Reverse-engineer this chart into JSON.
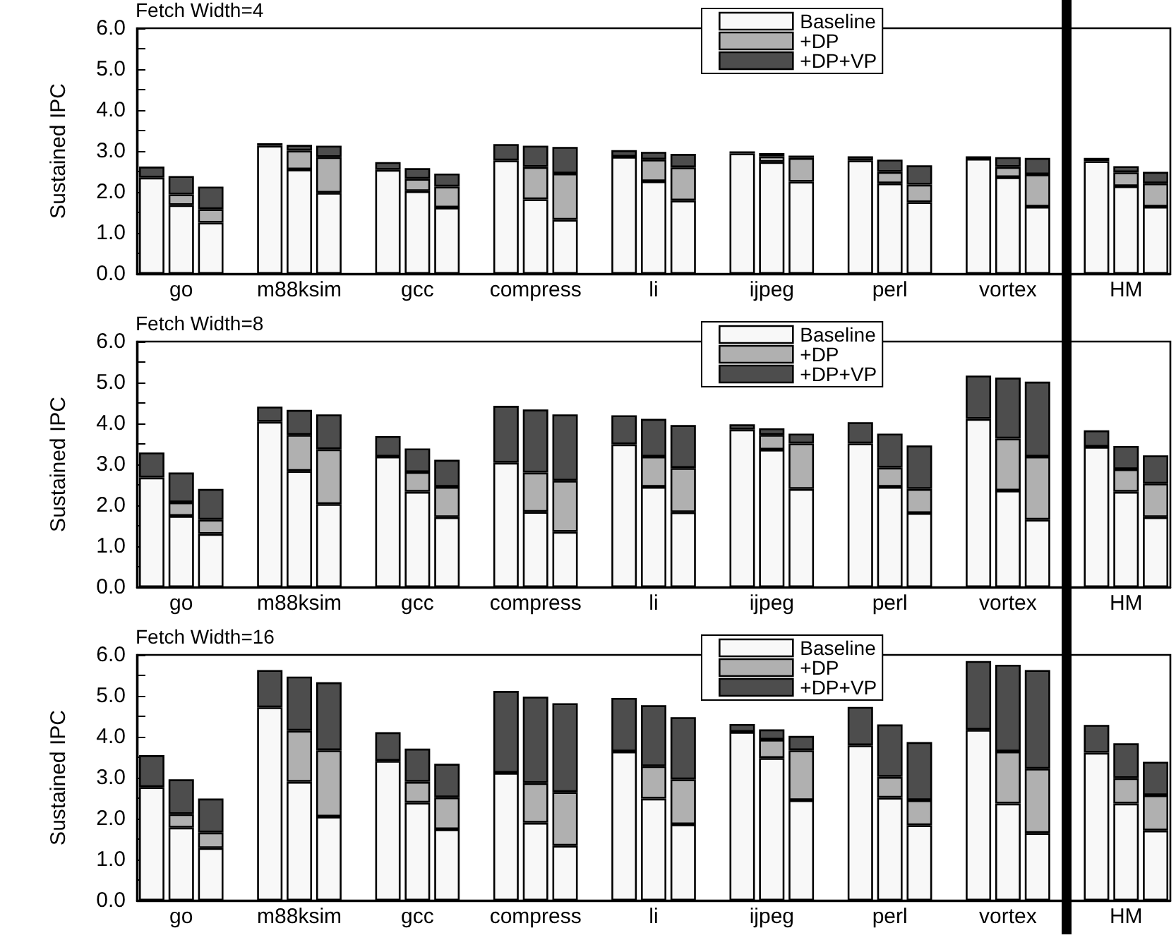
{
  "chart_data": [
    {
      "type": "bar",
      "stacked": true,
      "title": "Fetch Width=4",
      "ylabel": "Sustained IPC",
      "legend": "top",
      "categories": [
        null,
        "go",
        null,
        null,
        null,
        "m88ksim",
        null,
        null,
        null,
        "gcc",
        null,
        null,
        null,
        "compress",
        null,
        null,
        null,
        "li",
        null,
        null,
        null,
        "ijpeg",
        null,
        null,
        null,
        "perl",
        null,
        null,
        null,
        "vortex",
        null,
        null,
        null,
        "HM",
        null
      ],
      "ylim": [
        0,
        6
      ],
      "yticks": [
        {
          "value": 0,
          "label": "0.0"
        },
        {
          "value": 0.5,
          "label": null
        },
        {
          "value": 1,
          "label": "1.0"
        },
        {
          "value": 1.5,
          "label": null
        },
        {
          "value": 2,
          "label": "2.0"
        },
        {
          "value": 2.5,
          "label": null
        },
        {
          "value": 3,
          "label": "3.0"
        },
        {
          "value": 3.5,
          "label": null
        },
        {
          "value": 4,
          "label": "4.0"
        },
        {
          "value": 4.5,
          "label": null
        },
        {
          "value": 5,
          "label": "5.0"
        },
        {
          "value": 5.5,
          "label": null
        },
        {
          "value": 6,
          "label": "6.0"
        }
      ],
      "series": [
        {
          "name": "Baseline",
          "color": "#f8f8f8",
          "values": [
            2.35,
            1.68,
            1.25,
            null,
            3.13,
            2.55,
            1.98,
            null,
            2.54,
            2.02,
            1.62,
            null,
            2.77,
            1.82,
            1.32,
            null,
            2.86,
            2.26,
            1.79,
            null,
            2.94,
            2.73,
            2.25,
            null,
            2.77,
            2.21,
            1.75,
            null,
            2.81,
            2.36,
            1.64,
            null,
            2.75,
            2.14,
            1.64
          ]
        },
        {
          "name": "+DP",
          "color": "#b0b0b0",
          "values": [
            0,
            0.26,
            0.33,
            null,
            0,
            0.46,
            0.87,
            null,
            0,
            0.3,
            0.51,
            null,
            0,
            0.79,
            1.13,
            null,
            0,
            0.53,
            0.81,
            null,
            0,
            0.14,
            0.58,
            null,
            0,
            0.28,
            0.43,
            null,
            0,
            0.25,
            0.79,
            null,
            0,
            0.34,
            0.57
          ]
        },
        {
          "name": "+DP+VP",
          "color": "#4d4d4d",
          "values": [
            0.27,
            0.45,
            0.55,
            null,
            0.06,
            0.14,
            0.28,
            null,
            0.19,
            0.26,
            0.32,
            null,
            0.4,
            0.52,
            0.65,
            null,
            0.16,
            0.19,
            0.33,
            null,
            0.05,
            0.08,
            0.06,
            null,
            0.1,
            0.3,
            0.47,
            null,
            0.06,
            0.24,
            0.4,
            null,
            0.08,
            0.15,
            0.28
          ]
        }
      ]
    },
    {
      "type": "bar",
      "stacked": true,
      "title": "Fetch Width=8",
      "ylabel": "Sustained IPC",
      "legend": "top",
      "categories": [
        null,
        "go",
        null,
        null,
        null,
        "m88ksim",
        null,
        null,
        null,
        "gcc",
        null,
        null,
        null,
        "compress",
        null,
        null,
        null,
        "li",
        null,
        null,
        null,
        "ijpeg",
        null,
        null,
        null,
        "perl",
        null,
        null,
        null,
        "vortex",
        null,
        null,
        null,
        "HM",
        null
      ],
      "ylim": [
        0,
        6
      ],
      "yticks": [
        {
          "value": 0,
          "label": "0.0"
        },
        {
          "value": 0.5,
          "label": null
        },
        {
          "value": 1,
          "label": "1.0"
        },
        {
          "value": 1.5,
          "label": null
        },
        {
          "value": 2,
          "label": "2.0"
        },
        {
          "value": 2.5,
          "label": null
        },
        {
          "value": 3,
          "label": "3.0"
        },
        {
          "value": 3.5,
          "label": null
        },
        {
          "value": 4,
          "label": "4.0"
        },
        {
          "value": 4.5,
          "label": null
        },
        {
          "value": 5,
          "label": "5.0"
        },
        {
          "value": 5.5,
          "label": null
        },
        {
          "value": 6,
          "label": "6.0"
        }
      ],
      "series": [
        {
          "name": "Baseline",
          "color": "#f8f8f8",
          "values": [
            2.68,
            1.74,
            1.3,
            null,
            4.04,
            2.84,
            2.03,
            null,
            3.19,
            2.33,
            1.71,
            null,
            3.04,
            1.84,
            1.35,
            null,
            3.49,
            2.45,
            1.83,
            null,
            3.85,
            3.36,
            2.4,
            null,
            3.51,
            2.45,
            1.81,
            null,
            4.11,
            2.36,
            1.65,
            null,
            3.43,
            2.33,
            1.71
          ]
        },
        {
          "name": "+DP",
          "color": "#b0b0b0",
          "values": [
            0,
            0.33,
            0.35,
            null,
            0,
            0.88,
            1.34,
            null,
            0,
            0.48,
            0.74,
            null,
            0,
            0.96,
            1.25,
            null,
            0,
            0.74,
            1.08,
            null,
            0,
            0.36,
            1.11,
            null,
            0,
            0.47,
            0.59,
            null,
            0,
            1.27,
            1.54,
            null,
            0,
            0.55,
            0.82
          ]
        },
        {
          "name": "+DP+VP",
          "color": "#4d4d4d",
          "values": [
            0.61,
            0.73,
            0.75,
            null,
            0.37,
            0.61,
            0.85,
            null,
            0.5,
            0.58,
            0.66,
            null,
            1.39,
            1.54,
            1.62,
            null,
            0.71,
            0.92,
            1.05,
            null,
            0.13,
            0.16,
            0.24,
            null,
            0.52,
            0.83,
            1.06,
            null,
            1.06,
            1.49,
            1.83,
            null,
            0.4,
            0.57,
            0.69
          ]
        }
      ]
    },
    {
      "type": "bar",
      "stacked": true,
      "title": "Fetch Width=16",
      "ylabel": "Sustained IPC",
      "legend": "top",
      "categories": [
        null,
        "go",
        null,
        null,
        null,
        "m88ksim",
        null,
        null,
        null,
        "gcc",
        null,
        null,
        null,
        "compress",
        null,
        null,
        null,
        "li",
        null,
        null,
        null,
        "ijpeg",
        null,
        null,
        null,
        "perl",
        null,
        null,
        null,
        "vortex",
        null,
        null,
        null,
        "HM",
        null
      ],
      "ylim": [
        0,
        6
      ],
      "yticks": [
        {
          "value": 0,
          "label": "0.0"
        },
        {
          "value": 0.5,
          "label": null
        },
        {
          "value": 1,
          "label": "1.0"
        },
        {
          "value": 1.5,
          "label": null
        },
        {
          "value": 2,
          "label": "2.0"
        },
        {
          "value": 2.5,
          "label": null
        },
        {
          "value": 3,
          "label": "3.0"
        },
        {
          "value": 3.5,
          "label": null
        },
        {
          "value": 4,
          "label": "4.0"
        },
        {
          "value": 4.5,
          "label": null
        },
        {
          "value": 5,
          "label": "5.0"
        },
        {
          "value": 5.5,
          "label": null
        },
        {
          "value": 6,
          "label": "6.0"
        }
      ],
      "series": [
        {
          "name": "Baseline",
          "color": "#f8f8f8",
          "values": [
            2.77,
            1.78,
            1.28,
            null,
            4.72,
            2.9,
            2.05,
            null,
            3.41,
            2.39,
            1.74,
            null,
            3.12,
            1.9,
            1.34,
            null,
            3.64,
            2.49,
            1.86,
            null,
            4.12,
            3.48,
            2.45,
            null,
            3.79,
            2.51,
            1.84,
            null,
            4.17,
            2.37,
            1.65,
            null,
            3.61,
            2.37,
            1.71
          ]
        },
        {
          "name": "+DP",
          "color": "#b0b0b0",
          "values": [
            0,
            0.33,
            0.38,
            null,
            0,
            1.25,
            1.62,
            null,
            0,
            0.51,
            0.78,
            null,
            0,
            0.97,
            1.31,
            null,
            0,
            0.79,
            1.1,
            null,
            0,
            0.45,
            1.22,
            null,
            0,
            0.51,
            0.61,
            null,
            0,
            1.27,
            1.57,
            null,
            0,
            0.62,
            0.86
          ]
        },
        {
          "name": "+DP+VP",
          "color": "#4d4d4d",
          "values": [
            0.78,
            0.85,
            0.83,
            null,
            0.91,
            1.32,
            1.66,
            null,
            0.7,
            0.81,
            0.82,
            null,
            2.0,
            2.11,
            2.17,
            null,
            1.31,
            1.49,
            1.52,
            null,
            0.19,
            0.25,
            0.35,
            null,
            0.94,
            1.28,
            1.42,
            null,
            1.68,
            2.12,
            2.41,
            null,
            0.68,
            0.85,
            0.82
          ]
        }
      ]
    }
  ]
}
